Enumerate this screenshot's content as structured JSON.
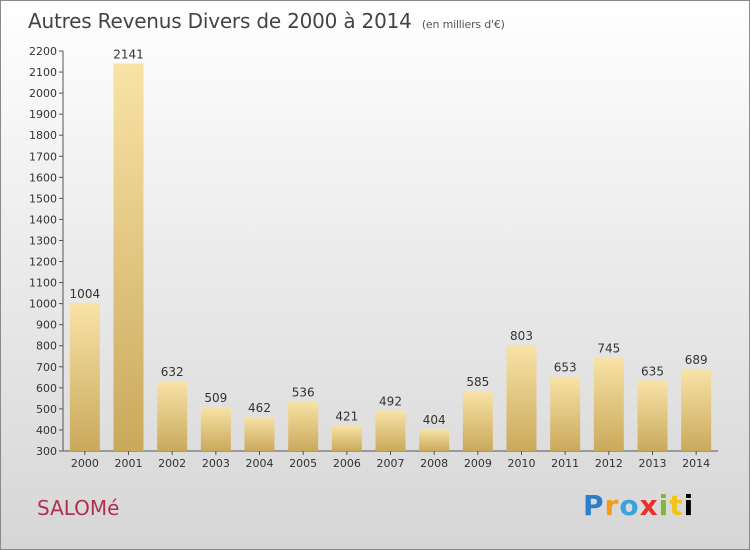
{
  "title": "Autres Revenus Divers de 2000 à 2014",
  "subtitle": "(en milliers d'€)",
  "commune": "SALOMé",
  "logo": {
    "letters": [
      "P",
      "r",
      "o",
      "x",
      "i",
      "t",
      "i"
    ]
  },
  "colors": {
    "bar_light": "#f5dc9a",
    "bar_dark": "#c9a95a",
    "commune": "#b03052"
  },
  "chart_data": {
    "type": "bar",
    "categories": [
      "2000",
      "2001",
      "2002",
      "2003",
      "2004",
      "2005",
      "2006",
      "2007",
      "2008",
      "2009",
      "2010",
      "2011",
      "2012",
      "2013",
      "2014"
    ],
    "values": [
      1004,
      2141,
      632,
      509,
      462,
      536,
      421,
      492,
      404,
      585,
      803,
      653,
      745,
      635,
      689
    ],
    "ylim": [
      300,
      2200
    ],
    "yticks": [
      300,
      400,
      500,
      600,
      700,
      800,
      900,
      1000,
      1100,
      1200,
      1300,
      1400,
      1500,
      1600,
      1700,
      1800,
      1900,
      2000,
      2100,
      2200
    ],
    "data_labels": true,
    "grid": false
  }
}
